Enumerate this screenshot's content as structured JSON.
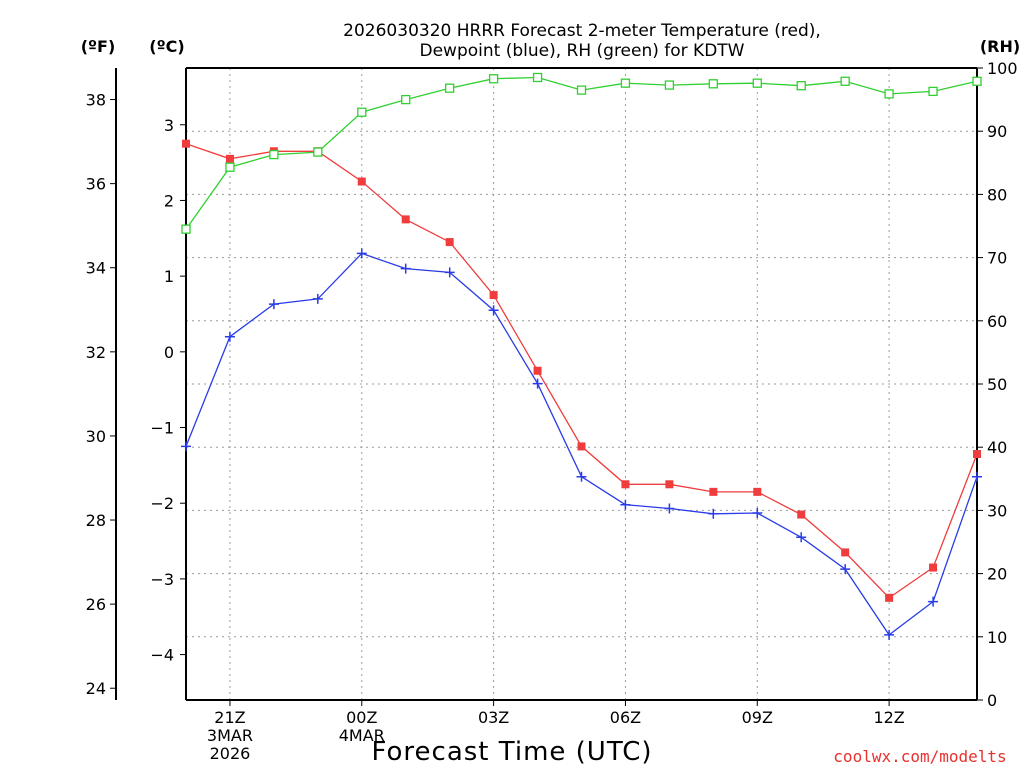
{
  "chart_data": {
    "type": "line",
    "title_line1": "2026030320 HRRR Forecast 2-meter Temperature (red),",
    "title_line2": "Dewpoint (blue), RH (green) for KDTW",
    "xlabel": "Forecast Time (UTC)",
    "credit": "coolwx.com/modelts",
    "units": {
      "fahrenheit": "(ºF)",
      "celsius": "(ºC)",
      "rh": "(RH)"
    },
    "x_hours": [
      20,
      21,
      22,
      23,
      24,
      25,
      26,
      27,
      28,
      29,
      30,
      31,
      32,
      33,
      34,
      35,
      36,
      37,
      38
    ],
    "x_ticks": [
      {
        "hour": 21,
        "label": "21Z",
        "date1": "3MAR",
        "date2": "2026"
      },
      {
        "hour": 24,
        "label": "00Z",
        "date1": "4MAR",
        "date2": ""
      },
      {
        "hour": 27,
        "label": "03Z",
        "date1": "",
        "date2": ""
      },
      {
        "hour": 30,
        "label": "06Z",
        "date1": "",
        "date2": ""
      },
      {
        "hour": 33,
        "label": "09Z",
        "date1": "",
        "date2": ""
      },
      {
        "hour": 36,
        "label": "12Z",
        "date1": "",
        "date2": ""
      }
    ],
    "x_range": [
      20,
      38
    ],
    "celsius_axis": {
      "range": [
        -4.6,
        3.75
      ],
      "ticks": [
        3,
        2,
        1,
        0,
        -1,
        -2,
        -3,
        -4
      ],
      "labels": [
        "3",
        "2",
        "1",
        "0",
        "−1",
        "−2",
        "−3",
        "−4"
      ]
    },
    "fahrenheit_axis": {
      "ticks": [
        38,
        36,
        34,
        32,
        30,
        28,
        26,
        24
      ],
      "labels": [
        "38",
        "36",
        "34",
        "32",
        "30",
        "28",
        "26",
        "24"
      ]
    },
    "rh_axis": {
      "range": [
        0,
        100
      ],
      "ticks": [
        100,
        90,
        80,
        70,
        60,
        50,
        40,
        30,
        20,
        10,
        0
      ],
      "labels": [
        "100",
        "90",
        "80",
        "70",
        "60",
        "50",
        "40",
        "30",
        "20",
        "10",
        "0"
      ]
    },
    "series": [
      {
        "name": "Temperature",
        "unit": "C",
        "color": "#f03c3c",
        "marker": "filled-square",
        "values": [
          2.75,
          2.55,
          2.65,
          2.65,
          2.25,
          1.75,
          1.45,
          0.75,
          -0.25,
          -1.25,
          -1.75,
          -1.75,
          -1.85,
          -1.85,
          -2.15,
          -2.65,
          -3.25,
          -2.85,
          -1.35
        ]
      },
      {
        "name": "Dewpoint",
        "unit": "C",
        "color": "#2a3ce8",
        "marker": "plus",
        "values": [
          -1.25,
          0.2,
          0.63,
          0.7,
          1.3,
          1.1,
          1.05,
          0.55,
          -0.42,
          -1.65,
          -2.02,
          -2.07,
          -2.14,
          -2.13,
          -2.45,
          -2.87,
          -3.74,
          -3.3,
          -1.65
        ]
      },
      {
        "name": "RH",
        "unit": "%",
        "color": "#30d030",
        "marker": "open-square",
        "values": [
          74.5,
          84.3,
          86.3,
          86.7,
          93.0,
          95.0,
          96.8,
          98.3,
          98.5,
          96.5,
          97.6,
          97.3,
          97.5,
          97.6,
          97.2,
          97.9,
          95.9,
          96.3,
          97.9
        ]
      }
    ]
  }
}
